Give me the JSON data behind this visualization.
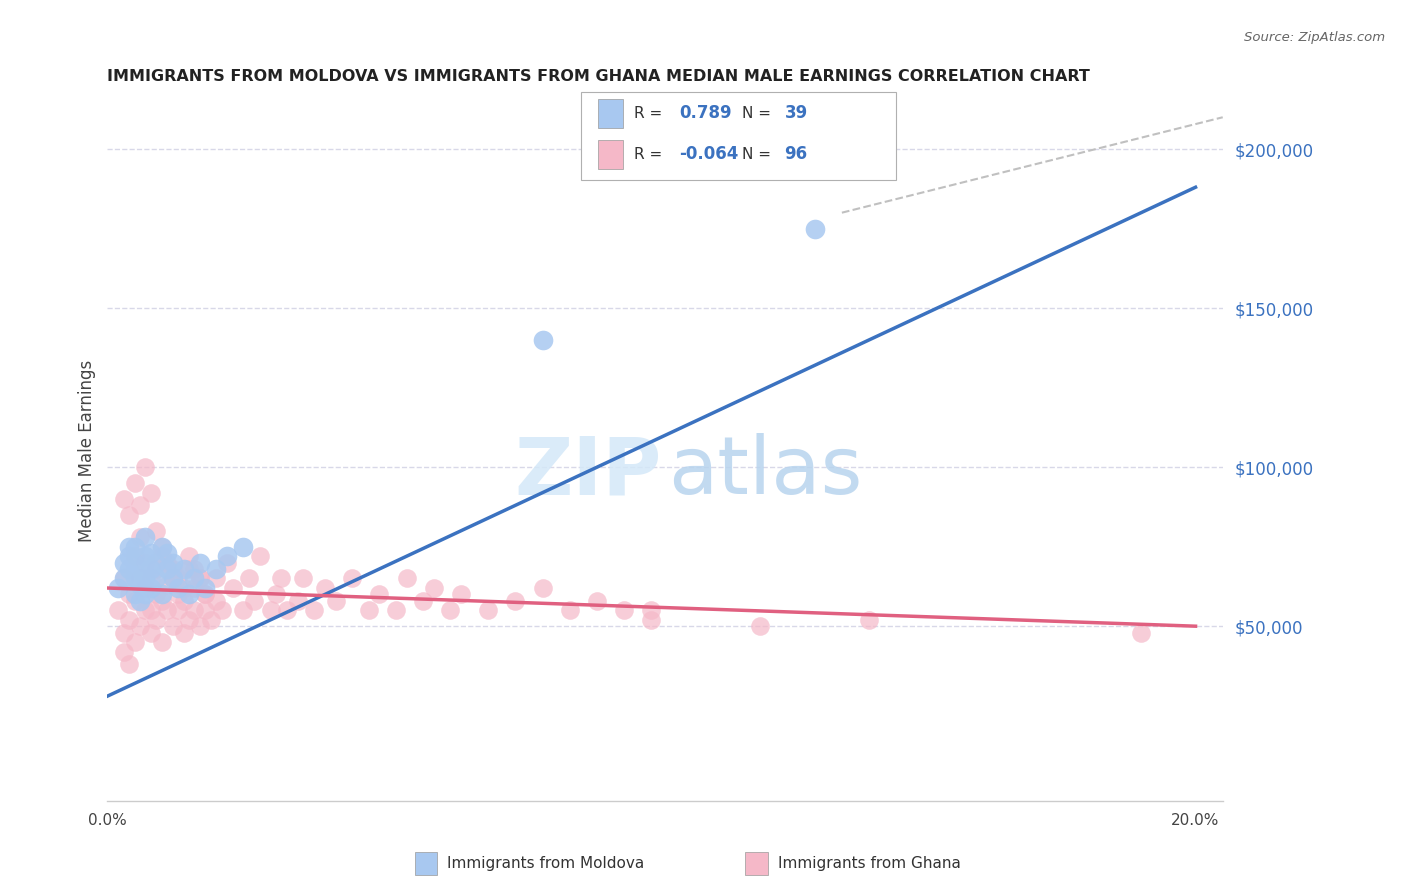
{
  "title": "IMMIGRANTS FROM MOLDOVA VS IMMIGRANTS FROM GHANA MEDIAN MALE EARNINGS CORRELATION CHART",
  "source": "Source: ZipAtlas.com",
  "ylabel": "Median Male Earnings",
  "ylabel_right_ticks": [
    "$50,000",
    "$100,000",
    "$150,000",
    "$200,000"
  ],
  "ylabel_right_values": [
    50000,
    100000,
    150000,
    200000
  ],
  "ylim": [
    -5000,
    215000
  ],
  "xlim": [
    0.0,
    0.205
  ],
  "moldova_color": "#a8c8f0",
  "ghana_color": "#f5b8c8",
  "moldova_line_color": "#3b72c0",
  "ghana_line_color": "#e06080",
  "dashed_line_color": "#c0c0c0",
  "legend_R_moldova": "0.789",
  "legend_N_moldova": "39",
  "legend_R_ghana": "-0.064",
  "legend_N_ghana": "96",
  "watermark_zip": "ZIP",
  "watermark_atlas": "atlas",
  "grid_color": "#d8d8e8",
  "moldova_line_x0": 0.0,
  "moldova_line_y0": 28000,
  "moldova_line_x1": 0.2,
  "moldova_line_y1": 188000,
  "ghana_line_x0": 0.0,
  "ghana_line_y0": 62000,
  "ghana_line_x1": 0.2,
  "ghana_line_y1": 50000,
  "dash_line_x0": 0.135,
  "dash_line_y0": 180000,
  "dash_line_x1": 0.205,
  "dash_line_y1": 210000,
  "moldova_scatter_x": [
    0.002,
    0.003,
    0.003,
    0.004,
    0.004,
    0.004,
    0.005,
    0.005,
    0.005,
    0.005,
    0.006,
    0.006,
    0.006,
    0.007,
    0.007,
    0.007,
    0.007,
    0.008,
    0.008,
    0.008,
    0.009,
    0.009,
    0.01,
    0.01,
    0.011,
    0.011,
    0.012,
    0.012,
    0.013,
    0.014,
    0.015,
    0.016,
    0.017,
    0.018,
    0.02,
    0.022,
    0.025,
    0.08,
    0.13
  ],
  "moldova_scatter_y": [
    62000,
    70000,
    65000,
    72000,
    68000,
    75000,
    60000,
    65000,
    70000,
    75000,
    58000,
    63000,
    68000,
    72000,
    65000,
    60000,
    78000,
    62000,
    68000,
    73000,
    65000,
    70000,
    60000,
    75000,
    68000,
    73000,
    65000,
    70000,
    62000,
    68000,
    60000,
    65000,
    70000,
    62000,
    68000,
    72000,
    75000,
    140000,
    175000
  ],
  "ghana_scatter_x": [
    0.002,
    0.003,
    0.003,
    0.004,
    0.004,
    0.005,
    0.005,
    0.005,
    0.006,
    0.006,
    0.006,
    0.007,
    0.007,
    0.007,
    0.008,
    0.008,
    0.008,
    0.009,
    0.009,
    0.009,
    0.01,
    0.01,
    0.01,
    0.011,
    0.011,
    0.012,
    0.012,
    0.013,
    0.013,
    0.014,
    0.014,
    0.015,
    0.015,
    0.016,
    0.016,
    0.017,
    0.017,
    0.018,
    0.018,
    0.019,
    0.02,
    0.02,
    0.021,
    0.022,
    0.023,
    0.025,
    0.026,
    0.027,
    0.028,
    0.03,
    0.031,
    0.032,
    0.033,
    0.035,
    0.036,
    0.038,
    0.04,
    0.042,
    0.045,
    0.048,
    0.05,
    0.053,
    0.055,
    0.058,
    0.06,
    0.063,
    0.065,
    0.07,
    0.075,
    0.08,
    0.085,
    0.09,
    0.095,
    0.1,
    0.003,
    0.004,
    0.005,
    0.006,
    0.007,
    0.008,
    0.009,
    0.01,
    0.011,
    0.012,
    0.013,
    0.014,
    0.015,
    0.016,
    0.017,
    0.018,
    0.003,
    0.004,
    0.1,
    0.12,
    0.14,
    0.19
  ],
  "ghana_scatter_y": [
    55000,
    48000,
    65000,
    52000,
    60000,
    45000,
    58000,
    72000,
    50000,
    65000,
    78000,
    55000,
    62000,
    70000,
    48000,
    55000,
    65000,
    52000,
    60000,
    68000,
    45000,
    58000,
    72000,
    55000,
    63000,
    50000,
    65000,
    55000,
    60000,
    48000,
    58000,
    52000,
    68000,
    55000,
    62000,
    50000,
    65000,
    55000,
    60000,
    52000,
    58000,
    65000,
    55000,
    70000,
    62000,
    55000,
    65000,
    58000,
    72000,
    55000,
    60000,
    65000,
    55000,
    58000,
    65000,
    55000,
    62000,
    58000,
    65000,
    55000,
    60000,
    55000,
    65000,
    58000,
    62000,
    55000,
    60000,
    55000,
    58000,
    62000,
    55000,
    58000,
    55000,
    52000,
    90000,
    85000,
    95000,
    88000,
    100000,
    92000,
    80000,
    75000,
    70000,
    68000,
    65000,
    62000,
    72000,
    68000,
    65000,
    60000,
    42000,
    38000,
    55000,
    50000,
    52000,
    48000
  ]
}
